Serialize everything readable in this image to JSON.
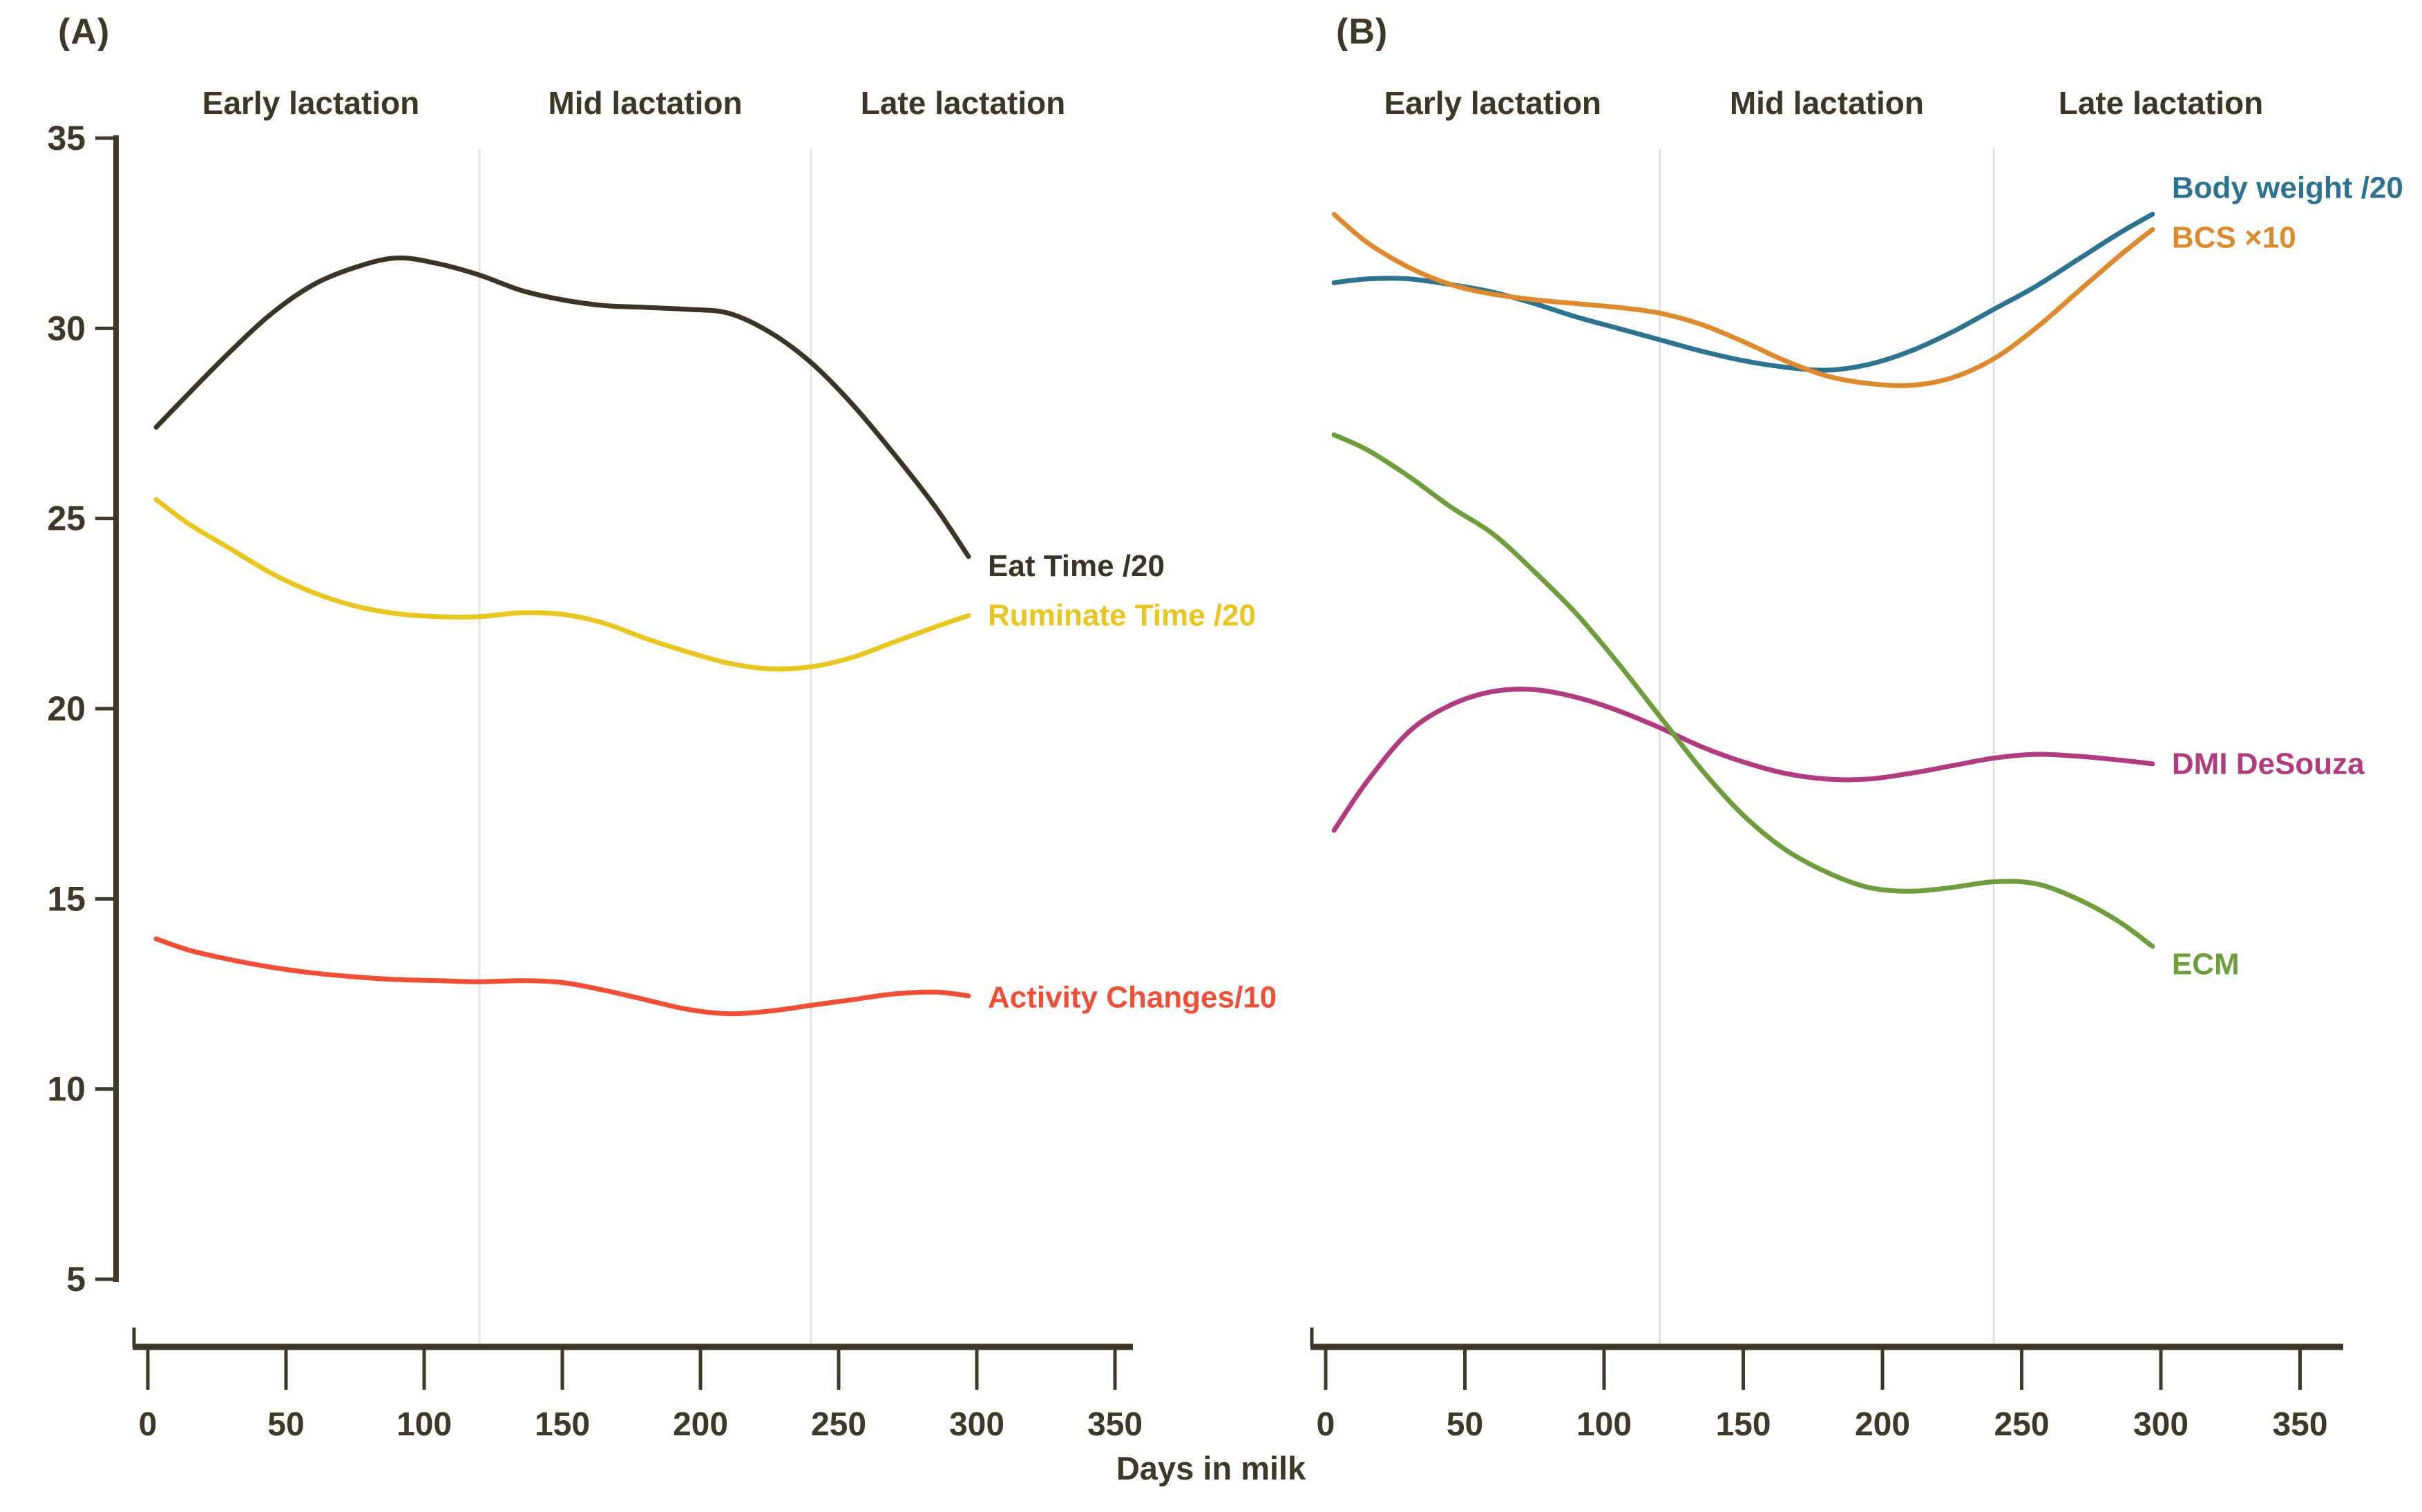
{
  "figure": {
    "xlabel": "Days in milk",
    "panel_a_letter": "(A)",
    "panel_b_letter": "(B)"
  },
  "style": {
    "background": "#ffffff",
    "axis_color": "#3e3829",
    "tick_label_color": "#3e3829",
    "region_label_color": "#3c3627",
    "gridline_color": "#e3e2de"
  },
  "chart_data": [
    {
      "type": "line",
      "panel": "A",
      "title": "(A)",
      "xlabel": "Days in milk",
      "ylabel": "",
      "xlim": [
        0,
        350
      ],
      "ylim": [
        5,
        35
      ],
      "xticks": [
        0,
        50,
        100,
        150,
        200,
        250,
        300,
        350
      ],
      "yticks": [
        5,
        10,
        15,
        20,
        25,
        30,
        35
      ],
      "show_y_axis": true,
      "grid": "vertical gridlines at x=120 and x=240",
      "gridline_days": [
        120,
        240
      ],
      "legend_position": "labels at right end of each line",
      "region_labels": [
        {
          "text": "Early lactation",
          "day": 59
        },
        {
          "text": "Mid lactation",
          "day": 180
        },
        {
          "text": "Late lactation",
          "day": 295
        }
      ],
      "series": [
        {
          "name": "Eat Time /20",
          "color": "#3a3426",
          "x": [
            3,
            15,
            30,
            45,
            60,
            75,
            90,
            105,
            120,
            135,
            150,
            165,
            180,
            195,
            210,
            225,
            240,
            255,
            270,
            285,
            297
          ],
          "y": [
            27.4,
            28.3,
            29.4,
            30.4,
            31.15,
            31.6,
            31.85,
            31.7,
            31.4,
            31.0,
            30.75,
            30.6,
            30.55,
            30.5,
            30.4,
            29.9,
            29.1,
            28.0,
            26.7,
            25.3,
            24.0
          ]
        },
        {
          "name": "Ruminate Time /20",
          "color": "#e9c51f",
          "x": [
            3,
            15,
            30,
            45,
            60,
            75,
            90,
            105,
            120,
            135,
            150,
            165,
            180,
            195,
            210,
            225,
            240,
            255,
            270,
            285,
            297
          ],
          "y": [
            25.5,
            24.85,
            24.2,
            23.55,
            23.05,
            22.7,
            22.5,
            22.42,
            22.42,
            22.52,
            22.48,
            22.25,
            21.85,
            21.5,
            21.2,
            21.05,
            21.1,
            21.35,
            21.75,
            22.15,
            22.45
          ]
        },
        {
          "name": "Activity Changes/10",
          "color": "#f04f37",
          "x": [
            3,
            15,
            30,
            45,
            60,
            75,
            90,
            105,
            120,
            135,
            150,
            165,
            180,
            195,
            210,
            225,
            240,
            255,
            270,
            285,
            297
          ],
          "y": [
            13.95,
            13.65,
            13.4,
            13.2,
            13.05,
            12.95,
            12.88,
            12.85,
            12.82,
            12.85,
            12.8,
            12.6,
            12.35,
            12.1,
            11.98,
            12.05,
            12.2,
            12.35,
            12.5,
            12.55,
            12.45
          ]
        }
      ]
    },
    {
      "type": "line",
      "panel": "B",
      "title": "(B)",
      "xlabel": "Days in milk",
      "ylabel": "",
      "xlim": [
        0,
        350
      ],
      "ylim": [
        5,
        35
      ],
      "xticks": [
        0,
        50,
        100,
        150,
        200,
        250,
        300,
        350
      ],
      "yticks": [],
      "show_y_axis": false,
      "grid": "vertical gridlines at x=120 and x=240",
      "gridline_days": [
        120,
        240
      ],
      "legend_position": "labels at right end of each line",
      "region_labels": [
        {
          "text": "Early lactation",
          "day": 60
        },
        {
          "text": "Mid lactation",
          "day": 180
        },
        {
          "text": "Late lactation",
          "day": 300
        }
      ],
      "series": [
        {
          "name": "Body weight /20",
          "color": "#2d7390",
          "x": [
            3,
            15,
            30,
            45,
            60,
            75,
            90,
            105,
            120,
            135,
            150,
            165,
            180,
            195,
            210,
            225,
            240,
            255,
            270,
            285,
            297
          ],
          "y": [
            31.2,
            31.3,
            31.3,
            31.15,
            30.95,
            30.65,
            30.3,
            30.0,
            29.7,
            29.4,
            29.15,
            28.98,
            28.9,
            29.05,
            29.4,
            29.9,
            30.5,
            31.1,
            31.8,
            32.5,
            33.0
          ]
        },
        {
          "name": "BCS ×10",
          "color": "#dc8a2d",
          "x": [
            3,
            15,
            30,
            45,
            60,
            75,
            90,
            105,
            120,
            135,
            150,
            165,
            180,
            195,
            210,
            225,
            240,
            255,
            270,
            285,
            297
          ],
          "y": [
            33.0,
            32.25,
            31.6,
            31.15,
            30.9,
            30.75,
            30.65,
            30.55,
            30.4,
            30.1,
            29.65,
            29.15,
            28.75,
            28.55,
            28.5,
            28.7,
            29.2,
            30.0,
            30.95,
            31.9,
            32.6
          ]
        },
        {
          "name": "DMI DeSouza",
          "color": "#b03c7f",
          "x": [
            3,
            15,
            30,
            45,
            60,
            75,
            90,
            105,
            120,
            135,
            150,
            165,
            180,
            195,
            210,
            225,
            240,
            255,
            270,
            285,
            297
          ],
          "y": [
            16.8,
            18.1,
            19.4,
            20.1,
            20.45,
            20.5,
            20.3,
            19.95,
            19.5,
            19.0,
            18.6,
            18.3,
            18.15,
            18.15,
            18.3,
            18.5,
            18.7,
            18.8,
            18.75,
            18.65,
            18.55
          ]
        },
        {
          "name": "ECM",
          "color": "#6f9c3c",
          "x": [
            3,
            15,
            30,
            45,
            60,
            75,
            90,
            105,
            120,
            135,
            150,
            165,
            180,
            195,
            210,
            225,
            240,
            255,
            270,
            285,
            297
          ],
          "y": [
            27.2,
            26.8,
            26.1,
            25.3,
            24.6,
            23.6,
            22.5,
            21.2,
            19.8,
            18.4,
            17.2,
            16.3,
            15.7,
            15.3,
            15.2,
            15.3,
            15.45,
            15.4,
            15.0,
            14.4,
            13.75
          ]
        }
      ]
    }
  ]
}
